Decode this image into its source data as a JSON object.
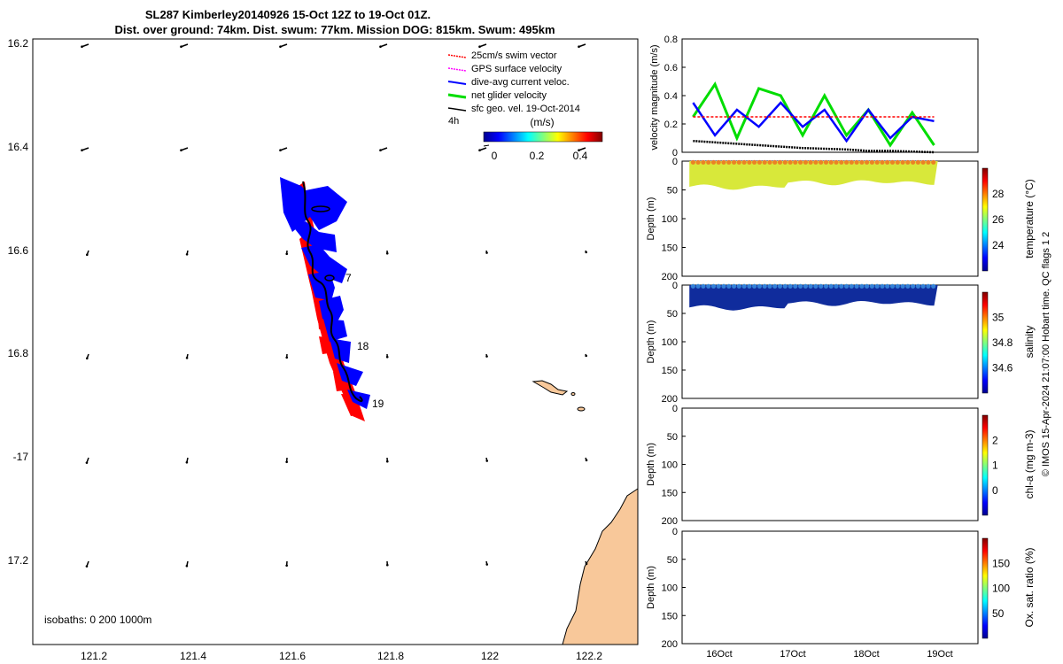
{
  "title": {
    "line1": "SL287 Kimberley20140926 15-Oct 12Z to 19-Oct 01Z.",
    "line2": "Dist. over ground: 74km. Dist. swum: 77km. Mission DOG: 815km. Swum: 495km"
  },
  "legend": {
    "items": [
      {
        "label": "25cm/s swim vector",
        "color": "#ff0000"
      },
      {
        "label": "GPS surface velocity",
        "color": "#ff00ff"
      },
      {
        "label": "dive-avg current veloc.",
        "color": "#0000ff"
      },
      {
        "label": "net glider velocity",
        "color": "#00dd00"
      },
      {
        "label": "sfc geo. vel. 19-Oct-2014",
        "color": "#000000"
      }
    ],
    "interval": "4h",
    "colorbar_label": "(m/s)",
    "colorbar_ticks": [
      "0",
      "0.2",
      "0.4"
    ]
  },
  "map": {
    "lat_ticks": [
      "16.2",
      "16.4",
      "16.6",
      "16.8",
      "-17",
      "17.2"
    ],
    "lon_ticks": [
      "121.2",
      "121.4",
      "121.6",
      "121.8",
      "122",
      "122.2"
    ],
    "day_labels": [
      "7",
      "18",
      "19"
    ],
    "isobaths": "isobaths: 0   200  1000m",
    "land_color": "#f8c89a",
    "track_blue": "#0000ff",
    "track_red": "#ff0000"
  },
  "chart_data": [
    {
      "type": "line",
      "title": "",
      "ylabel": "velocity magnitude (m/s)",
      "ylim": [
        0,
        0.8
      ],
      "yticks": [
        "0",
        "0.2",
        "0.4",
        "0.6",
        "0.8"
      ],
      "x_days": [
        15.7,
        16.0,
        16.3,
        16.6,
        16.9,
        17.2,
        17.5,
        17.8,
        18.1,
        18.4,
        18.7,
        19.0
      ],
      "series": [
        {
          "name": "net glider velocity",
          "color": "#00dd00",
          "values": [
            0.25,
            0.48,
            0.1,
            0.45,
            0.4,
            0.12,
            0.4,
            0.12,
            0.3,
            0.05,
            0.28,
            0.05
          ]
        },
        {
          "name": "dive-avg current veloc.",
          "color": "#0000ff",
          "values": [
            0.35,
            0.12,
            0.3,
            0.18,
            0.35,
            0.18,
            0.3,
            0.08,
            0.3,
            0.1,
            0.25,
            0.22
          ]
        },
        {
          "name": "25cm/s swim vector",
          "color": "#ff0000",
          "values": [
            0.25,
            0.25,
            0.25,
            0.25,
            0.25,
            0.25,
            0.25,
            0.25,
            0.25,
            0.25,
            0.25,
            0.25
          ]
        },
        {
          "name": "sfc geo. vel.",
          "color": "#000000",
          "values": [
            0.08,
            0.07,
            0.06,
            0.05,
            0.04,
            0.03,
            0.025,
            0.02,
            0.01,
            0.01,
            0.005,
            0.0
          ]
        }
      ]
    },
    {
      "type": "heatmap",
      "ylabel": "Depth (m)",
      "ylim": [
        200,
        0
      ],
      "yticks": [
        "0",
        "50",
        "100",
        "150",
        "200"
      ],
      "colorbar_label": "temperature (°C)",
      "colorbar_ticks": [
        "24",
        "26",
        "28"
      ],
      "max_depth_sampled": 45,
      "typical_value": 27.5
    },
    {
      "type": "heatmap",
      "ylabel": "Depth (m)",
      "ylim": [
        200,
        0
      ],
      "yticks": [
        "0",
        "50",
        "100",
        "150",
        "200"
      ],
      "colorbar_label": "salinity",
      "colorbar_ticks": [
        "34.6",
        "34.8",
        "35"
      ],
      "max_depth_sampled": 40,
      "typical_value": 34.6
    },
    {
      "type": "heatmap",
      "ylabel": "Depth (m)",
      "ylim": [
        200,
        0
      ],
      "yticks": [
        "0",
        "50",
        "100",
        "150",
        "200"
      ],
      "colorbar_label": "chl-a (mg m-3)",
      "colorbar_ticks": [
        "0",
        "1",
        "2"
      ]
    },
    {
      "type": "heatmap",
      "ylabel": "Depth (m)",
      "ylim": [
        200,
        0
      ],
      "yticks": [
        "0",
        "50",
        "100",
        "150",
        "200"
      ],
      "colorbar_label": "Ox. sat. ratio (%)",
      "colorbar_ticks": [
        "50",
        "100",
        "150"
      ],
      "xticks": [
        "16Oct",
        "17Oct",
        "18Oct",
        "19Oct"
      ]
    }
  ],
  "side_note": "© IMOS 15-Apr-2024 21:07:00 Hobart time. QC flags 1  2"
}
